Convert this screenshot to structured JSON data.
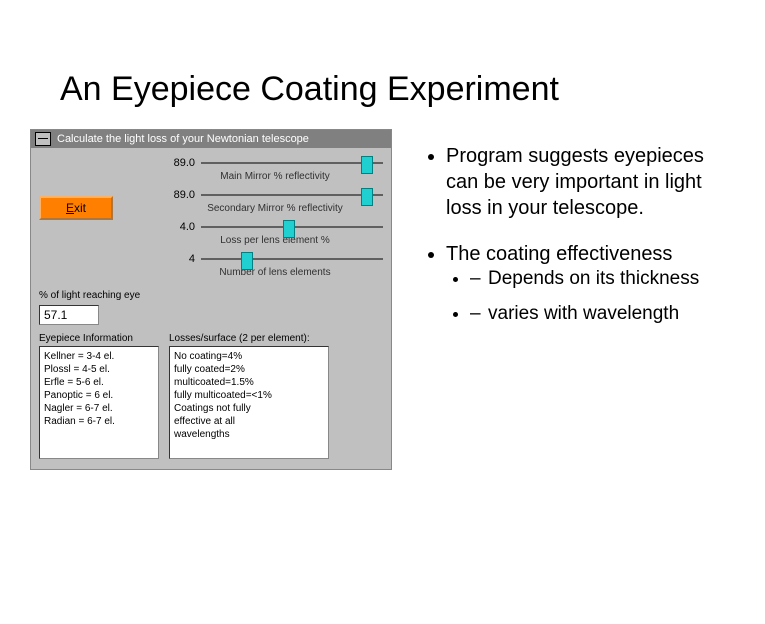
{
  "title": "An Eyepiece Coating Experiment",
  "app": {
    "window_title": "Calculate the light loss of your Newtonian telescope",
    "exit_label_html": "Exit",
    "reach_label": "% of light reaching eye",
    "reach_value": "57.1",
    "sliders": [
      {
        "value": "89.0",
        "label": "Main Mirror % reflectivity",
        "pos_pct": 88
      },
      {
        "value": "89.0",
        "label": "Secondary Mirror % reflectivity",
        "pos_pct": 88
      },
      {
        "value": "4.0",
        "label": "Loss per lens element %",
        "pos_pct": 45
      },
      {
        "value": "4",
        "label": "Number of lens elements",
        "pos_pct": 22
      }
    ],
    "eyepiece_info_label": "Eyepiece Information",
    "eyepiece_info_lines": [
      "Kellner = 3-4 el.",
      "Plossl = 4-5 el.",
      "Erfle = 5-6 el.",
      "Panoptic = 6 el.",
      "Nagler = 6-7 el.",
      "Radian = 6-7 el."
    ],
    "losses_label": "Losses/surface (2 per element):",
    "losses_lines": [
      "No coating=4%",
      "fully coated=2%",
      "multicoated=1.5%",
      "fully multicoated=<1%",
      "Coatings not fully",
      "effective at all",
      "wavelengths"
    ]
  },
  "bullets": {
    "b1": "Program suggests eyepieces can be very important in light loss in your telescope.",
    "b2": "The coating effectiveness",
    "s1": "Depends on its thickness",
    "s2": "varies with wavelength"
  },
  "colors": {
    "accent_button": "#ff8000",
    "slider_thumb": "#20d0d0",
    "window_bg": "#c0c0c0",
    "titlebar_bg": "#808080"
  }
}
